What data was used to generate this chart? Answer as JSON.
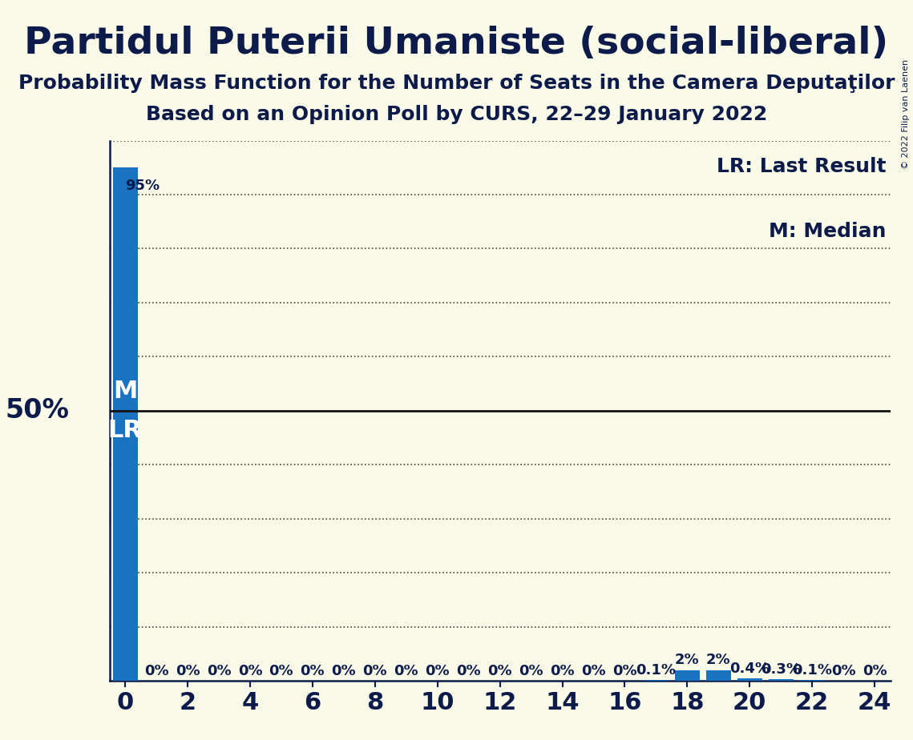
{
  "title": "Partidul Puterii Umaniste (social-liberal)",
  "subtitle1": "Probability Mass Function for the Number of Seats in the Camera Deputaţilor",
  "subtitle2": "Based on an Opinion Poll by CURS, 22–29 January 2022",
  "copyright": "© 2022 Filip van Laenen",
  "background_color": "#fafae8",
  "bar_color": "#1a73c1",
  "text_color": "#0d1b4b",
  "white_color": "#ffffff",
  "x_values": [
    0,
    1,
    2,
    3,
    4,
    5,
    6,
    7,
    8,
    9,
    10,
    11,
    12,
    13,
    14,
    15,
    16,
    17,
    18,
    19,
    20,
    21,
    22,
    23,
    24
  ],
  "pmf_values": [
    0.95,
    0.0,
    0.0,
    0.0,
    0.0,
    0.0,
    0.0,
    0.0,
    0.0,
    0.0,
    0.0,
    0.0,
    0.0,
    0.0,
    0.0,
    0.0,
    0.0,
    0.001,
    0.02,
    0.02,
    0.004,
    0.003,
    0.001,
    0.0,
    0.0
  ],
  "bar_labels": [
    "95%",
    "0%",
    "0%",
    "0%",
    "0%",
    "0%",
    "0%",
    "0%",
    "0%",
    "0%",
    "0%",
    "0%",
    "0%",
    "0%",
    "0%",
    "0%",
    "0%",
    "0.1%",
    "2%",
    "2%",
    "0.4%",
    "0.3%",
    "0.1%",
    "0%",
    "0%"
  ],
  "ylim": [
    0,
    1.0
  ],
  "xlim": [
    -0.5,
    24.5
  ],
  "xticks": [
    0,
    2,
    4,
    6,
    8,
    10,
    12,
    14,
    16,
    18,
    20,
    22,
    24
  ],
  "fifty_pct_line": 0.5,
  "legend_lr": "LR: Last Result",
  "legend_m": "M: Median",
  "title_fontsize": 34,
  "subtitle_fontsize": 18,
  "axis_fontsize": 22,
  "label_fontsize": 13,
  "ml_fontsize": 22,
  "fifty_fontsize": 24,
  "dotted_line_color": "#444444",
  "solid_line_color": "#111111",
  "grid_y_positions": [
    0.1,
    0.2,
    0.3,
    0.4,
    0.6,
    0.7,
    0.8,
    0.9,
    1.0
  ]
}
